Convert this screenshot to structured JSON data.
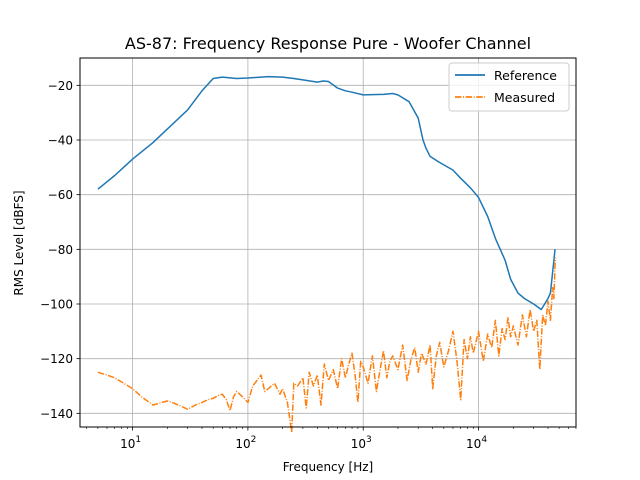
{
  "chart_data": {
    "type": "line",
    "title": "AS-87: Frequency Response Pure - Woofer Channel",
    "xlabel": "Frequency [Hz]",
    "ylabel": "RMS Level [dBFS]",
    "xscale": "log",
    "xlim": [
      3.5,
      70000
    ],
    "ylim": [
      -145,
      -10
    ],
    "xticks": [
      {
        "value": 10,
        "base": "10",
        "exp": "1"
      },
      {
        "value": 100,
        "base": "10",
        "exp": "2"
      },
      {
        "value": 1000,
        "base": "10",
        "exp": "3"
      },
      {
        "value": 10000,
        "base": "10",
        "exp": "4"
      }
    ],
    "yticks": [
      {
        "value": -140,
        "label": "−140"
      },
      {
        "value": -120,
        "label": "−120"
      },
      {
        "value": -100,
        "label": "−100"
      },
      {
        "value": -80,
        "label": "−80"
      },
      {
        "value": -60,
        "label": "−60"
      },
      {
        "value": -40,
        "label": "−40"
      },
      {
        "value": -20,
        "label": "−20"
      }
    ],
    "grid": true,
    "legend_position": "top-right",
    "series": [
      {
        "name": "Reference",
        "color": "#1f77b4",
        "style": "solid",
        "points": [
          [
            5,
            -58
          ],
          [
            7,
            -53
          ],
          [
            10,
            -47
          ],
          [
            15,
            -41
          ],
          [
            20,
            -36
          ],
          [
            30,
            -29
          ],
          [
            40,
            -22
          ],
          [
            50,
            -17.5
          ],
          [
            60,
            -17
          ],
          [
            80,
            -17.5
          ],
          [
            100,
            -17.3
          ],
          [
            150,
            -16.8
          ],
          [
            200,
            -17
          ],
          [
            250,
            -17.5
          ],
          [
            300,
            -18
          ],
          [
            400,
            -18.8
          ],
          [
            450,
            -18.4
          ],
          [
            500,
            -18.6
          ],
          [
            600,
            -21
          ],
          [
            700,
            -22
          ],
          [
            800,
            -22.5
          ],
          [
            1000,
            -23.5
          ],
          [
            1500,
            -23.3
          ],
          [
            1800,
            -23
          ],
          [
            2000,
            -23.5
          ],
          [
            2500,
            -26
          ],
          [
            3000,
            -32
          ],
          [
            3300,
            -40
          ],
          [
            3500,
            -43
          ],
          [
            3800,
            -46
          ],
          [
            4500,
            -48
          ],
          [
            6000,
            -51
          ],
          [
            7000,
            -54
          ],
          [
            8500,
            -57.5
          ],
          [
            10000,
            -61
          ],
          [
            12000,
            -68
          ],
          [
            14000,
            -76
          ],
          [
            17000,
            -84
          ],
          [
            19000,
            -91
          ],
          [
            22000,
            -96
          ],
          [
            25000,
            -98
          ],
          [
            30000,
            -100
          ],
          [
            35000,
            -102
          ],
          [
            40000,
            -98
          ],
          [
            42000,
            -96
          ],
          [
            45000,
            -84
          ],
          [
            46000,
            -80
          ]
        ]
      },
      {
        "name": "Measured",
        "color": "#ff7f0e",
        "style": "dashdot",
        "points": [
          [
            5,
            -125
          ],
          [
            6,
            -126
          ],
          [
            7,
            -127
          ],
          [
            8,
            -128.5
          ],
          [
            10,
            -131
          ],
          [
            12,
            -134
          ],
          [
            15,
            -137
          ],
          [
            18,
            -136
          ],
          [
            20,
            -135.5
          ],
          [
            22,
            -136
          ],
          [
            25,
            -137
          ],
          [
            30,
            -138.5
          ],
          [
            35,
            -137
          ],
          [
            40,
            -136
          ],
          [
            45,
            -135
          ],
          [
            50,
            -134.5
          ],
          [
            55,
            -133.5
          ],
          [
            60,
            -133
          ],
          [
            65,
            -135
          ],
          [
            70,
            -139
          ],
          [
            75,
            -134
          ],
          [
            80,
            -132
          ],
          [
            90,
            -134
          ],
          [
            100,
            -136
          ],
          [
            110,
            -130
          ],
          [
            120,
            -128
          ],
          [
            130,
            -126
          ],
          [
            140,
            -132
          ],
          [
            150,
            -131
          ],
          [
            170,
            -129
          ],
          [
            190,
            -133
          ],
          [
            200,
            -131
          ],
          [
            220,
            -136
          ],
          [
            240,
            -147
          ],
          [
            250,
            -129
          ],
          [
            270,
            -130
          ],
          [
            300,
            -127
          ],
          [
            320,
            -138
          ],
          [
            340,
            -125
          ],
          [
            370,
            -130
          ],
          [
            400,
            -126
          ],
          [
            430,
            -137
          ],
          [
            460,
            -122
          ],
          [
            500,
            -128
          ],
          [
            550,
            -124
          ],
          [
            600,
            -131
          ],
          [
            650,
            -120
          ],
          [
            700,
            -127
          ],
          [
            750,
            -122
          ],
          [
            800,
            -118
          ],
          [
            850,
            -126
          ],
          [
            900,
            -136
          ],
          [
            950,
            -121
          ],
          [
            1000,
            -123
          ],
          [
            1100,
            -129
          ],
          [
            1200,
            -119
          ],
          [
            1300,
            -132
          ],
          [
            1400,
            -124
          ],
          [
            1500,
            -117
          ],
          [
            1600,
            -127
          ],
          [
            1700,
            -121
          ],
          [
            1800,
            -119
          ],
          [
            2000,
            -124
          ],
          [
            2200,
            -115
          ],
          [
            2400,
            -128
          ],
          [
            2600,
            -120
          ],
          [
            2800,
            -116
          ],
          [
            3000,
            -125
          ],
          [
            3200,
            -118
          ],
          [
            3500,
            -122
          ],
          [
            3800,
            -115
          ],
          [
            4000,
            -131
          ],
          [
            4300,
            -119
          ],
          [
            4600,
            -114
          ],
          [
            5000,
            -123
          ],
          [
            5500,
            -117
          ],
          [
            6000,
            -110
          ],
          [
            6500,
            -121
          ],
          [
            7000,
            -135
          ],
          [
            7500,
            -113
          ],
          [
            8000,
            -120
          ],
          [
            8500,
            -112
          ],
          [
            9000,
            -118
          ],
          [
            10000,
            -110
          ],
          [
            11000,
            -121
          ],
          [
            12000,
            -111
          ],
          [
            13000,
            -116
          ],
          [
            14000,
            -106
          ],
          [
            15000,
            -119
          ],
          [
            16000,
            -109
          ],
          [
            17000,
            -113
          ],
          [
            18000,
            -105
          ],
          [
            19000,
            -112
          ],
          [
            20000,
            -108
          ],
          [
            22000,
            -115
          ],
          [
            24000,
            -104
          ],
          [
            26000,
            -112
          ],
          [
            28000,
            -102
          ],
          [
            30000,
            -110
          ],
          [
            32000,
            -106
          ],
          [
            34000,
            -124
          ],
          [
            36000,
            -104
          ],
          [
            38000,
            -108
          ],
          [
            40000,
            -99
          ],
          [
            42000,
            -106
          ],
          [
            44000,
            -94
          ],
          [
            45000,
            -98
          ],
          [
            46000,
            -86
          ],
          [
            46500,
            -83
          ]
        ]
      }
    ]
  }
}
